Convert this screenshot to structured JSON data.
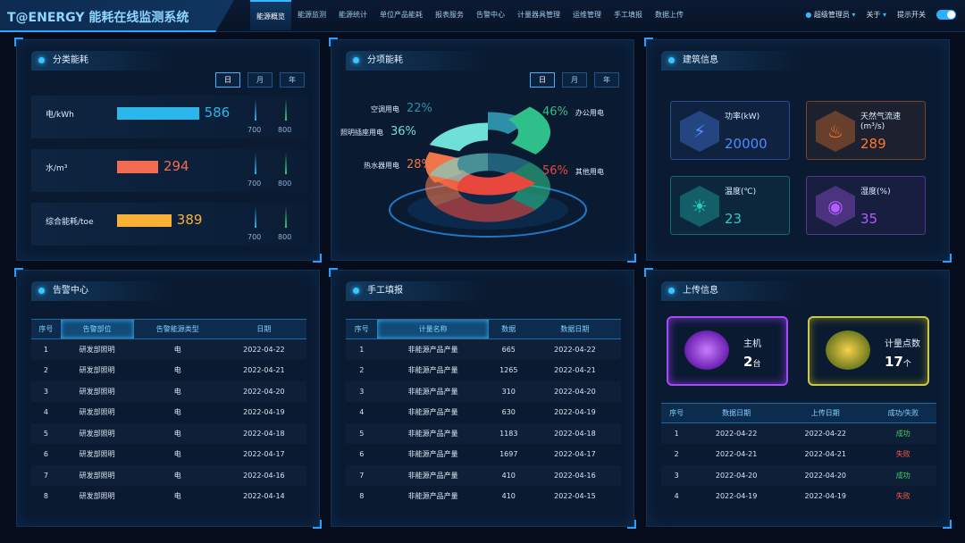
{
  "header": {
    "title": "T@ENERGY 能耗在线监测系统",
    "nav": [
      "能源概览",
      "能源监测",
      "能源统计",
      "单位产品能耗",
      "报表服务",
      "告警中心",
      "计量器具管理",
      "运维管理",
      "手工填报",
      "数据上传"
    ],
    "active_nav": 0,
    "user": "超级管理员",
    "about": "关于",
    "toggle_label": "提示开关",
    "toggle_on": true
  },
  "category": {
    "title": "分类能耗",
    "tabs": [
      "日",
      "月",
      "年"
    ],
    "active_tab": 0,
    "rows": [
      {
        "label": "电/kWh",
        "value": 586,
        "color": "#2bb6ec"
      },
      {
        "label": "水/m³",
        "value": 294,
        "color": "#f26a4f"
      },
      {
        "label": "综合能耗/toe",
        "value": 389,
        "color": "#f9b13a"
      }
    ],
    "ticks": [
      "700",
      "800"
    ],
    "max": 800
  },
  "subitem": {
    "title": "分项能耗",
    "tabs": [
      "日",
      "月",
      "年"
    ],
    "active_tab": 0,
    "chart_data": {
      "type": "pie",
      "slices": [
        {
          "name": "空调用电",
          "value": 22,
          "color": "#2f8fa8"
        },
        {
          "name": "办公用电",
          "value": 46,
          "color": "#2fbf8a"
        },
        {
          "name": "其他用电",
          "value": 56,
          "color": "#e8473e"
        },
        {
          "name": "热水器用电",
          "value": 28,
          "color": "#f0764a"
        },
        {
          "name": "照明插座用电",
          "value": 36,
          "color": "#6fe0d8"
        }
      ],
      "unit": "%"
    }
  },
  "building": {
    "title": "建筑信息",
    "cards": [
      {
        "label": "功率(kW)",
        "value": "20000",
        "color": "#4f8cff",
        "icon": "power-icon"
      },
      {
        "label": "天然气流速(m³/s)",
        "value": "289",
        "color": "#ff7a2a",
        "icon": "flame-icon"
      },
      {
        "label": "温度(℃)",
        "value": "23",
        "color": "#25d0c0",
        "icon": "thermometer-icon"
      },
      {
        "label": "湿度(%)",
        "value": "35",
        "color": "#b45cff",
        "icon": "humidity-icon"
      }
    ]
  },
  "alarm": {
    "title": "告警中心",
    "columns": [
      "序号",
      "告警部位",
      "告警能源类型",
      "日期"
    ],
    "rows": [
      [
        "1",
        "研发部照明",
        "电",
        "2022-04-22"
      ],
      [
        "2",
        "研发部照明",
        "电",
        "2022-04-21"
      ],
      [
        "3",
        "研发部照明",
        "电",
        "2022-04-20"
      ],
      [
        "4",
        "研发部照明",
        "电",
        "2022-04-19"
      ],
      [
        "5",
        "研发部照明",
        "电",
        "2022-04-18"
      ],
      [
        "6",
        "研发部照明",
        "电",
        "2022-04-17"
      ],
      [
        "7",
        "研发部照明",
        "电",
        "2022-04-16"
      ],
      [
        "8",
        "研发部照明",
        "电",
        "2022-04-14"
      ]
    ]
  },
  "manual": {
    "title": "手工填报",
    "columns": [
      "序号",
      "计量名称",
      "数据",
      "数据日期"
    ],
    "rows": [
      [
        "1",
        "非能源产品产量",
        "665",
        "2022-04-22"
      ],
      [
        "2",
        "非能源产品产量",
        "1265",
        "2022-04-21"
      ],
      [
        "3",
        "非能源产品产量",
        "310",
        "2022-04-20"
      ],
      [
        "4",
        "非能源产品产量",
        "630",
        "2022-04-19"
      ],
      [
        "5",
        "非能源产品产量",
        "1183",
        "2022-04-18"
      ],
      [
        "6",
        "非能源产品产量",
        "1697",
        "2022-04-17"
      ],
      [
        "7",
        "非能源产品产量",
        "410",
        "2022-04-16"
      ],
      [
        "8",
        "非能源产品产量",
        "410",
        "2022-04-15"
      ]
    ]
  },
  "upload": {
    "title": "上传信息",
    "host": {
      "label": "主机",
      "value": "2",
      "unit": "台"
    },
    "points": {
      "label": "计量点数",
      "value": "17",
      "unit": "个"
    },
    "columns": [
      "序号",
      "数据日期",
      "上传日期",
      "成功/失败"
    ],
    "rows": [
      [
        "1",
        "2022-04-22",
        "2022-04-22",
        "成功"
      ],
      [
        "2",
        "2022-04-21",
        "2022-04-21",
        "失败"
      ],
      [
        "3",
        "2022-04-20",
        "2022-04-20",
        "成功"
      ],
      [
        "4",
        "2022-04-19",
        "2022-04-19",
        "失败"
      ]
    ],
    "status_colors": {
      "成功": "#3fcf6a",
      "失败": "#ff5a4a"
    }
  }
}
